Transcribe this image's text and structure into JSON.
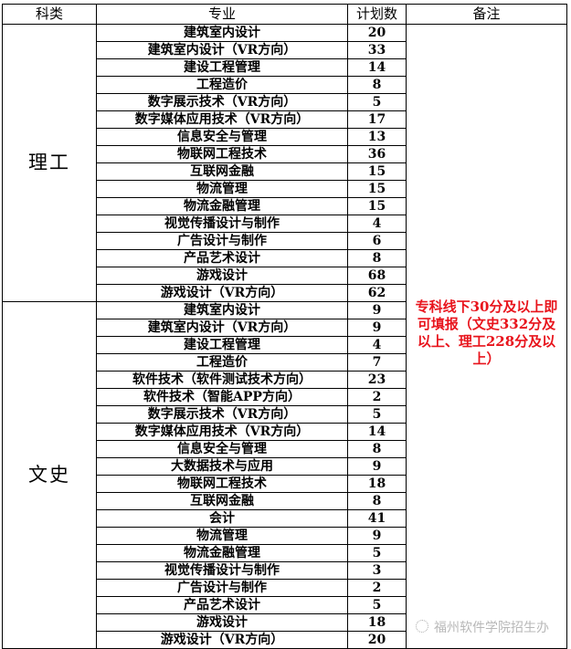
{
  "headers": [
    "科类",
    "专业",
    "计划数",
    "备注"
  ],
  "groups": [
    {
      "category": "理工",
      "rows": [
        [
          "建筑室内设计",
          "20"
        ],
        [
          "建筑室内设计（VR方向）",
          "33"
        ],
        [
          "建设工程管理",
          "14"
        ],
        [
          "工程造价",
          "8"
        ],
        [
          "数字展示技术（VR方向）",
          "5"
        ],
        [
          "数字媒体应用技术（VR方向）",
          "17"
        ],
        [
          "信息安全与管理",
          "13"
        ],
        [
          "物联网工程技术",
          "36"
        ],
        [
          "互联网金融",
          "15"
        ],
        [
          "物流管理",
          "15"
        ],
        [
          "物流金融管理",
          "15"
        ],
        [
          "视觉传播设计与制作",
          "4"
        ],
        [
          "广告设计与制作",
          "6"
        ],
        [
          "产品艺术设计",
          "8"
        ],
        [
          "游戏设计",
          "68"
        ],
        [
          "游戏设计（VR方向）",
          "62"
        ]
      ]
    },
    {
      "category": "文史",
      "rows": [
        [
          "建筑室内设计",
          "9"
        ],
        [
          "建筑室内设计（VR方向）",
          "9"
        ],
        [
          "建设工程管理",
          "4"
        ],
        [
          "工程造价",
          "7"
        ],
        [
          "软件技术（软件测试技术方向）",
          "23"
        ],
        [
          "软件技术（智能APP方向）",
          "2"
        ],
        [
          "数字展示技术（VR方向）",
          "5"
        ],
        [
          "数字媒体应用技术（VR方向）",
          "14"
        ],
        [
          "信息安全与管理",
          "8"
        ],
        [
          "大数据技术与应用",
          "9"
        ],
        [
          "物联网工程技术",
          "18"
        ],
        [
          "互联网金融",
          "8"
        ],
        [
          "会计",
          "41"
        ],
        [
          "物流管理",
          "9"
        ],
        [
          "物流金融管理",
          "5"
        ],
        [
          "视觉传播设计与制作",
          "3"
        ],
        [
          "广告设计与制作",
          "2"
        ],
        [
          "产品艺术设计",
          "5"
        ],
        [
          "游戏设计",
          "18"
        ],
        [
          "游戏设计（VR方向）",
          "20"
        ]
      ]
    }
  ],
  "note": "专科线下30分及以上即可填报（文史332分及以上、理工228分及以上）",
  "note_color": "#e8141c",
  "watermark": "福州软件学院招生办",
  "watermark_icon": "wechat-icon"
}
